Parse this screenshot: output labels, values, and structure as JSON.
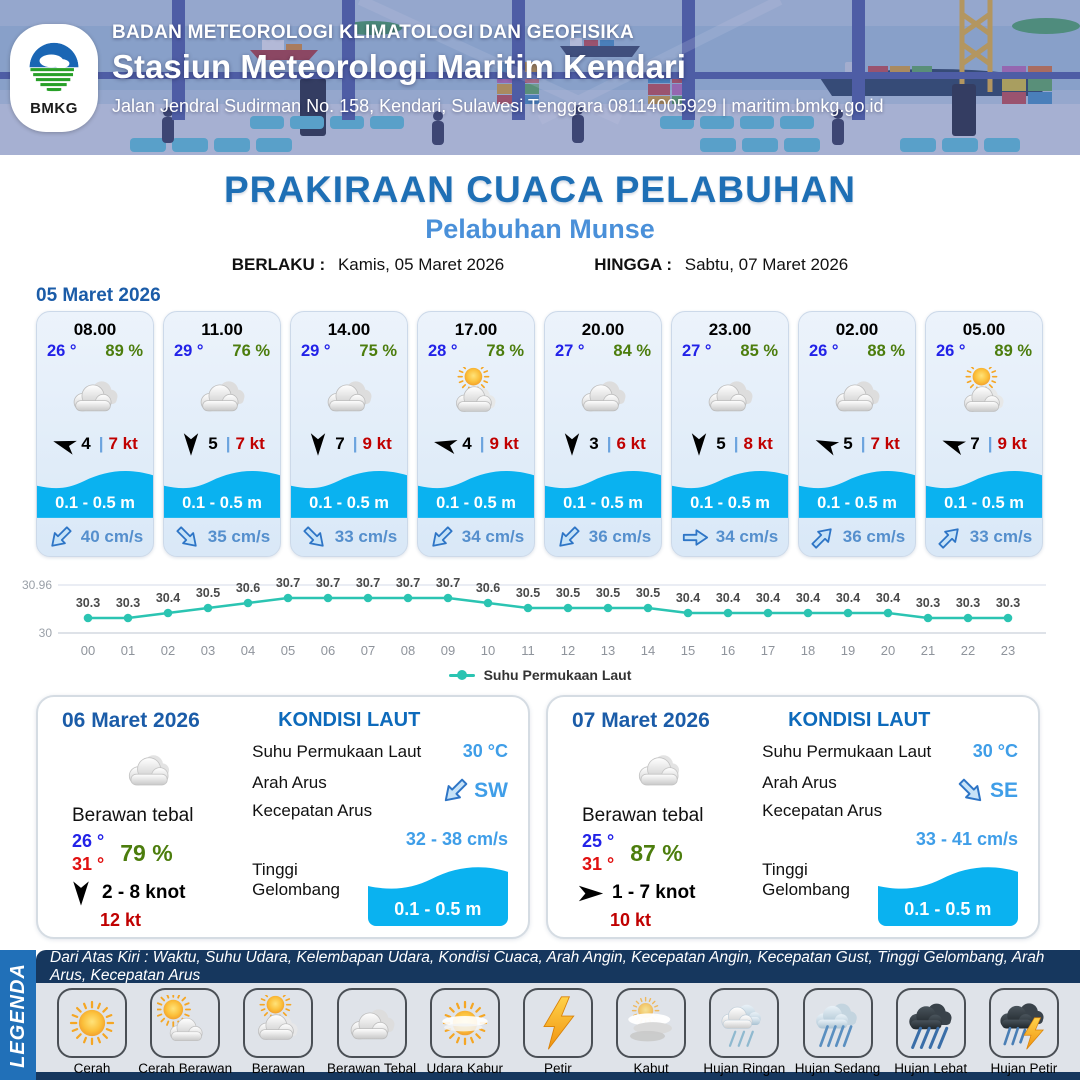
{
  "header": {
    "agency": "BADAN METEOROLOGI KLIMATOLOGI DAN GEOFISIKA",
    "station": "Stasiun Meteorologi Maritim Kendari",
    "address": "Jalan Jendral Sudirman No. 158, Kendari, Sulawesi Tenggara  08114005929 | maritim.bmkg.go.id",
    "logo_text": "BMKG"
  },
  "title": "PRAKIRAAN CUACA PELABUHAN",
  "subtitle": "Pelabuhan Munse",
  "validity": {
    "berlaku_label": "BERLAKU :",
    "berlaku_value": "Kamis, 05 Maret 2026",
    "hingga_label": "HINGGA :",
    "hingga_value": "Sabtu, 07 Maret 2026"
  },
  "forecast_date": "05 Maret 2026",
  "misc": {
    "wind_separator": "|"
  },
  "forecast_cards": [
    {
      "time": "08.00",
      "temp": "26 °",
      "humidity": "89 %",
      "icon": "berawan-tebal",
      "wind_deg": 197,
      "wind": "4",
      "gust": "7 kt",
      "wave": "0.1 - 0.5 m",
      "current_deg": 135,
      "current": "40 cm/s"
    },
    {
      "time": "11.00",
      "temp": "29 °",
      "humidity": "76 %",
      "icon": "berawan-tebal",
      "wind_deg": 90,
      "wind": "5",
      "gust": "7 kt",
      "wave": "0.1 - 0.5 m",
      "current_deg": 45,
      "current": "35 cm/s"
    },
    {
      "time": "14.00",
      "temp": "29 °",
      "humidity": "75 %",
      "icon": "berawan-tebal",
      "wind_deg": 90,
      "wind": "7",
      "gust": "9 kt",
      "wave": "0.1 - 0.5 m",
      "current_deg": 45,
      "current": "33 cm/s"
    },
    {
      "time": "17.00",
      "temp": "28 °",
      "humidity": "78 %",
      "icon": "berawan",
      "wind_deg": 193,
      "wind": "4",
      "gust": "9 kt",
      "wave": "0.1 - 0.5 m",
      "current_deg": 135,
      "current": "34 cm/s"
    },
    {
      "time": "20.00",
      "temp": "27 °",
      "humidity": "84 %",
      "icon": "berawan-tebal",
      "wind_deg": 90,
      "wind": "3",
      "gust": "6 kt",
      "wave": "0.1 - 0.5 m",
      "current_deg": 135,
      "current": "36 cm/s"
    },
    {
      "time": "23.00",
      "temp": "27 °",
      "humidity": "85 %",
      "icon": "berawan-tebal",
      "wind_deg": 90,
      "wind": "5",
      "gust": "8 kt",
      "wave": "0.1 - 0.5 m",
      "current_deg": 0,
      "current": "34 cm/s"
    },
    {
      "time": "02.00",
      "temp": "26 °",
      "humidity": "88 %",
      "icon": "berawan-tebal",
      "wind_deg": 203,
      "wind": "5",
      "gust": "7 kt",
      "wave": "0.1 - 0.5 m",
      "current_deg": -45,
      "current": "36 cm/s"
    },
    {
      "time": "05.00",
      "temp": "26 °",
      "humidity": "89 %",
      "icon": "berawan",
      "wind_deg": 200,
      "wind": "7",
      "gust": "9 kt",
      "wave": "0.1 - 0.5 m",
      "current_deg": -45,
      "current": "33 cm/s"
    }
  ],
  "chart_data": {
    "type": "line",
    "title": "",
    "x": [
      "00",
      "01",
      "02",
      "03",
      "04",
      "05",
      "06",
      "07",
      "08",
      "09",
      "10",
      "11",
      "12",
      "13",
      "14",
      "15",
      "16",
      "17",
      "18",
      "19",
      "20",
      "21",
      "22",
      "23"
    ],
    "series": [
      {
        "name": "Suhu Permukaan Laut",
        "values": [
          30.3,
          30.3,
          30.4,
          30.5,
          30.6,
          30.7,
          30.7,
          30.7,
          30.7,
          30.7,
          30.6,
          30.5,
          30.5,
          30.5,
          30.5,
          30.4,
          30.4,
          30.4,
          30.4,
          30.4,
          30.4,
          30.3,
          30.3,
          30.3
        ]
      }
    ],
    "ylim": [
      30,
      30.96
    ],
    "y_axis_labels": [
      "30.96",
      "30"
    ],
    "line_color": "#2bc4b2",
    "grid": true,
    "legend_position": "bottom"
  },
  "day_cards": [
    {
      "date": "06 Maret 2026",
      "icon": "awan",
      "condition": "Berawan tebal",
      "temp_min": "26 °",
      "temp_max": "31 °",
      "humidity": "79 %",
      "wind_deg": 90,
      "wind_range": "2  - 8 knot",
      "gust": "12 kt",
      "sea": {
        "heading": "KONDISI LAUT",
        "sst_label": "Suhu Permukaan Laut",
        "sst_value": "30 °C",
        "current_dir_label": "Arah Arus",
        "current_dir": "SW",
        "current_deg": 135,
        "current_speed_label": "Kecepatan Arus",
        "current_speed": "32 - 38 cm/s",
        "wave_label": "Tinggi Gelombang",
        "wave_value": "0.1 - 0.5 m"
      }
    },
    {
      "date": "07 Maret 2026",
      "icon": "awan",
      "condition": "Berawan tebal",
      "temp_min": "25 °",
      "temp_max": "31 °",
      "humidity": "87 %",
      "wind_deg": 0,
      "wind_range": "1  - 7 knot",
      "gust": "10 kt",
      "sea": {
        "heading": "KONDISI LAUT",
        "sst_label": "Suhu Permukaan Laut",
        "sst_value": "30 °C",
        "current_dir_label": "Arah Arus",
        "current_dir": "SE",
        "current_deg": 45,
        "current_speed_label": "Kecepatan Arus",
        "current_speed": "33 - 41 cm/s",
        "wave_label": "Tinggi Gelombang",
        "wave_value": "0.1 - 0.5 m"
      }
    }
  ],
  "legend": {
    "strip_label": "LEGENDA",
    "info": "Dari Atas Kiri : Waktu, Suhu Udara, Kelembapan Udara, Kondisi Cuaca, Arah Angin, Kecepatan Angin, Kecepatan Gust, Tinggi Gelombang, Arah Arus, Kecepatan Arus",
    "items": [
      {
        "label": "Cerah",
        "icon": "cerah"
      },
      {
        "label": "Cerah Berawan",
        "icon": "cerah-berawan"
      },
      {
        "label": "Berawan",
        "icon": "berawan"
      },
      {
        "label": "Berawan Tebal",
        "icon": "berawan-tebal"
      },
      {
        "label": "Udara Kabur",
        "icon": "udara-kabur"
      },
      {
        "label": "Petir",
        "icon": "petir"
      },
      {
        "label": "Kabut",
        "icon": "kabut"
      },
      {
        "label": "Hujan Ringan",
        "icon": "hujan-ringan"
      },
      {
        "label": "Hujan Sedang",
        "icon": "hujan-sedang"
      },
      {
        "label": "Hujan Lebat",
        "icon": "hujan-lebat"
      },
      {
        "label": "Hujan Petir",
        "icon": "hujan-petir"
      }
    ]
  }
}
